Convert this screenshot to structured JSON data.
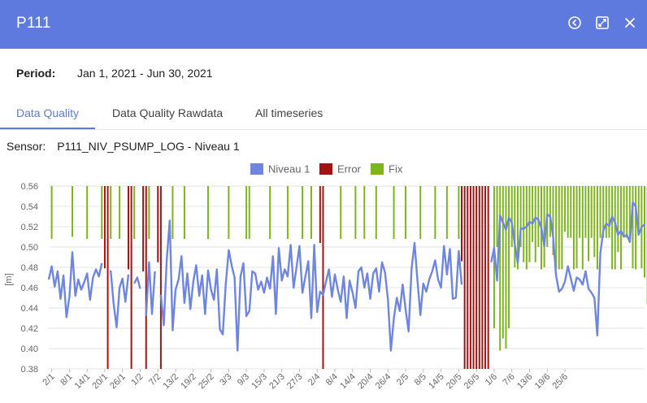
{
  "header": {
    "title": "P111"
  },
  "icons": {
    "back": "back-circle-icon",
    "expand": "expand-icon",
    "close": "close-icon"
  },
  "period": {
    "label": "Period:",
    "value": "Jan 1, 2021 - Jun 30, 2021"
  },
  "tabs": [
    {
      "label": "Data Quality",
      "active": true
    },
    {
      "label": "Data Quality Rawdata",
      "active": false
    },
    {
      "label": "All timeseries",
      "active": false
    }
  ],
  "sensor": {
    "label": "Sensor:",
    "value": "P111_NIV_PSUMP_LOG - Niveau 1"
  },
  "colors": {
    "header": "#5f7ade",
    "niveau": "#6f86e0",
    "error": "#a51212",
    "fix": "#7db51d"
  },
  "chart_data": {
    "type": "line",
    "title": "",
    "xlabel": "",
    "ylabel": "[m]",
    "ylim": [
      0.38,
      0.56
    ],
    "yticks": [
      "0.38",
      "0.40",
      "0.42",
      "0.44",
      "0.46",
      "0.48",
      "0.50",
      "0.52",
      "0.54",
      "0.56"
    ],
    "grid": true,
    "legend_position": "top-center",
    "x_start": "2021-01-01",
    "x_end": "2021-06-30",
    "xtick_labels": [
      "2/1",
      "8/1",
      "14/1",
      "20/1",
      "26/1",
      "1/2",
      "7/2",
      "13/2",
      "19/2",
      "25/2",
      "3/3",
      "9/3",
      "15/3",
      "21/3",
      "27/3",
      "2/4",
      "8/4",
      "14/4",
      "20/4",
      "26/4",
      "2/5",
      "8/5",
      "14/5",
      "20/5",
      "26/5",
      "1/6",
      "7/6",
      "13/6",
      "19/6",
      "25/6"
    ],
    "legend": [
      "Niveau 1",
      "Error",
      "Fix"
    ],
    "series": [
      {
        "name": "Niveau 1",
        "kind": "line",
        "values": [
          0.468,
          0.481,
          0.461,
          0.476,
          0.449,
          0.472,
          0.431,
          0.451,
          0.495,
          0.452,
          0.468,
          0.458,
          0.465,
          0.474,
          0.448,
          0.47,
          0.478,
          0.471,
          0.484,
          null,
          null,
          0.477,
          0.444,
          0.421,
          0.46,
          0.469,
          0.446,
          0.473,
          null,
          0.464,
          0.47,
          0.459,
          null,
          0.432,
          0.485,
          0.434,
          0.476,
          null,
          0.453,
          0.423,
          0.487,
          0.526,
          0.418,
          0.458,
          0.468,
          0.491,
          0.445,
          0.474,
          0.439,
          0.466,
          0.482,
          0.452,
          0.472,
          0.434,
          0.477,
          0.458,
          0.448,
          0.478,
          0.419,
          0.414,
          0.463,
          0.497,
          0.482,
          0.47,
          0.398,
          0.471,
          0.484,
          0.432,
          0.437,
          0.476,
          0.474,
          0.458,
          0.466,
          0.455,
          0.47,
          0.459,
          0.491,
          0.434,
          0.499,
          0.467,
          0.478,
          0.471,
          0.502,
          0.46,
          0.48,
          0.501,
          0.455,
          0.471,
          0.486,
          0.43,
          0.502,
          0.436,
          0.456,
          0.453,
          0.466,
          0.478,
          0.451,
          0.473,
          0.458,
          0.446,
          0.471,
          0.43,
          0.467,
          0.455,
          0.44,
          0.476,
          0.48,
          0.46,
          0.474,
          0.449,
          0.474,
          0.479,
          0.456,
          0.485,
          0.475,
          0.448,
          0.398,
          0.43,
          0.45,
          0.437,
          0.463,
          0.438,
          0.417,
          0.478,
          0.504,
          0.467,
          0.433,
          0.464,
          0.456,
          0.468,
          0.476,
          0.487,
          0.468,
          0.46,
          0.501,
          0.473,
          0.498,
          0.449,
          0.45,
          0.496,
          0.463,
          null,
          0.469,
          null,
          null,
          null,
          null,
          null,
          null,
          null,
          0.485,
          0.499,
          0.467,
          0.531,
          0.524,
          0.517,
          0.529,
          0.524,
          0.503,
          0.484,
          0.518,
          0.518,
          0.52,
          0.525,
          0.523,
          0.529,
          0.527,
          0.519,
          0.501,
          0.532,
          0.53,
          0.51,
          0.472,
          0.456,
          0.459,
          0.466,
          0.481,
          0.469,
          0.457,
          0.47,
          0.468,
          0.463,
          0.476,
          0.459,
          0.455,
          0.45,
          0.413,
          0.494,
          0.516,
          0.523,
          0.521,
          0.53,
          0.524,
          0.512,
          0.516,
          0.51,
          0.512,
          0.505,
          0.544,
          0.54,
          0.512,
          0.52,
          0.522
        ]
      },
      {
        "name": "Error",
        "kind": "bars",
        "day_indices": [
          19,
          20,
          27,
          28,
          32,
          33,
          37,
          38,
          92,
          93,
          140,
          141,
          142,
          143,
          144,
          145,
          146,
          147,
          148,
          149
        ],
        "bar_bottoms": [
          0.479,
          0.38,
          0.478,
          0.38,
          0.476,
          0.38,
          0.485,
          0.38,
          0.504,
          0.38,
          0.486,
          0.38,
          0.38,
          0.38,
          0.38,
          0.38,
          0.38,
          0.38,
          0.38,
          0.38
        ]
      },
      {
        "name": "Fix",
        "kind": "bars",
        "day_indices": [
          1,
          8,
          13,
          18,
          21,
          24,
          29,
          34,
          42,
          46,
          54,
          61,
          67,
          68,
          75,
          81,
          86,
          89,
          99,
          104,
          107,
          111,
          117,
          121,
          126,
          131,
          135,
          139,
          151,
          152,
          153,
          154,
          155,
          156,
          157,
          158,
          159,
          160,
          161,
          162,
          163,
          164,
          165,
          166,
          167,
          168,
          169,
          170,
          171,
          172,
          173,
          174,
          175,
          176,
          177,
          178,
          179,
          180,
          181,
          182,
          183,
          184,
          185,
          186,
          187,
          188,
          189,
          190,
          191,
          192,
          193,
          194,
          195,
          196,
          197,
          198,
          199,
          200,
          201,
          202,
          203,
          204,
          205,
          206,
          207,
          208,
          209,
          210,
          211,
          212,
          213,
          214,
          215,
          216,
          217,
          218
        ],
        "bar_bottoms": [
          0.508,
          0.51,
          0.508,
          0.508,
          0.508,
          0.508,
          0.508,
          0.508,
          0.508,
          0.508,
          0.508,
          0.508,
          0.508,
          0.508,
          0.508,
          0.508,
          0.508,
          0.508,
          0.508,
          0.508,
          0.508,
          0.508,
          0.508,
          0.508,
          0.508,
          0.508,
          0.508,
          0.508,
          0.42,
          0.5,
          0.398,
          0.41,
          0.4,
          0.42,
          0.5,
          0.48,
          0.478,
          0.5,
          0.485,
          0.478,
          0.485,
          0.505,
          0.485,
          0.5,
          0.478,
          0.48,
          0.5,
          0.51,
          0.492,
          0.478,
          0.478,
          0.478,
          0.515,
          0.509,
          0.509,
          0.478,
          0.479,
          0.509,
          0.478,
          0.509,
          0.486,
          0.509,
          0.49,
          0.478,
          0.509,
          0.509,
          0.509,
          0.509,
          0.478,
          0.478,
          0.495,
          0.478,
          0.51,
          0.509,
          0.509,
          0.479,
          0.478,
          0.512,
          0.479,
          0.47,
          0.444,
          0.509,
          0.508,
          0.47,
          0.51,
          0.512,
          0.509,
          0.509,
          0.509,
          0.49,
          0.509,
          0.51,
          0.47,
          0.509,
          0.509,
          0.512
        ]
      }
    ]
  }
}
